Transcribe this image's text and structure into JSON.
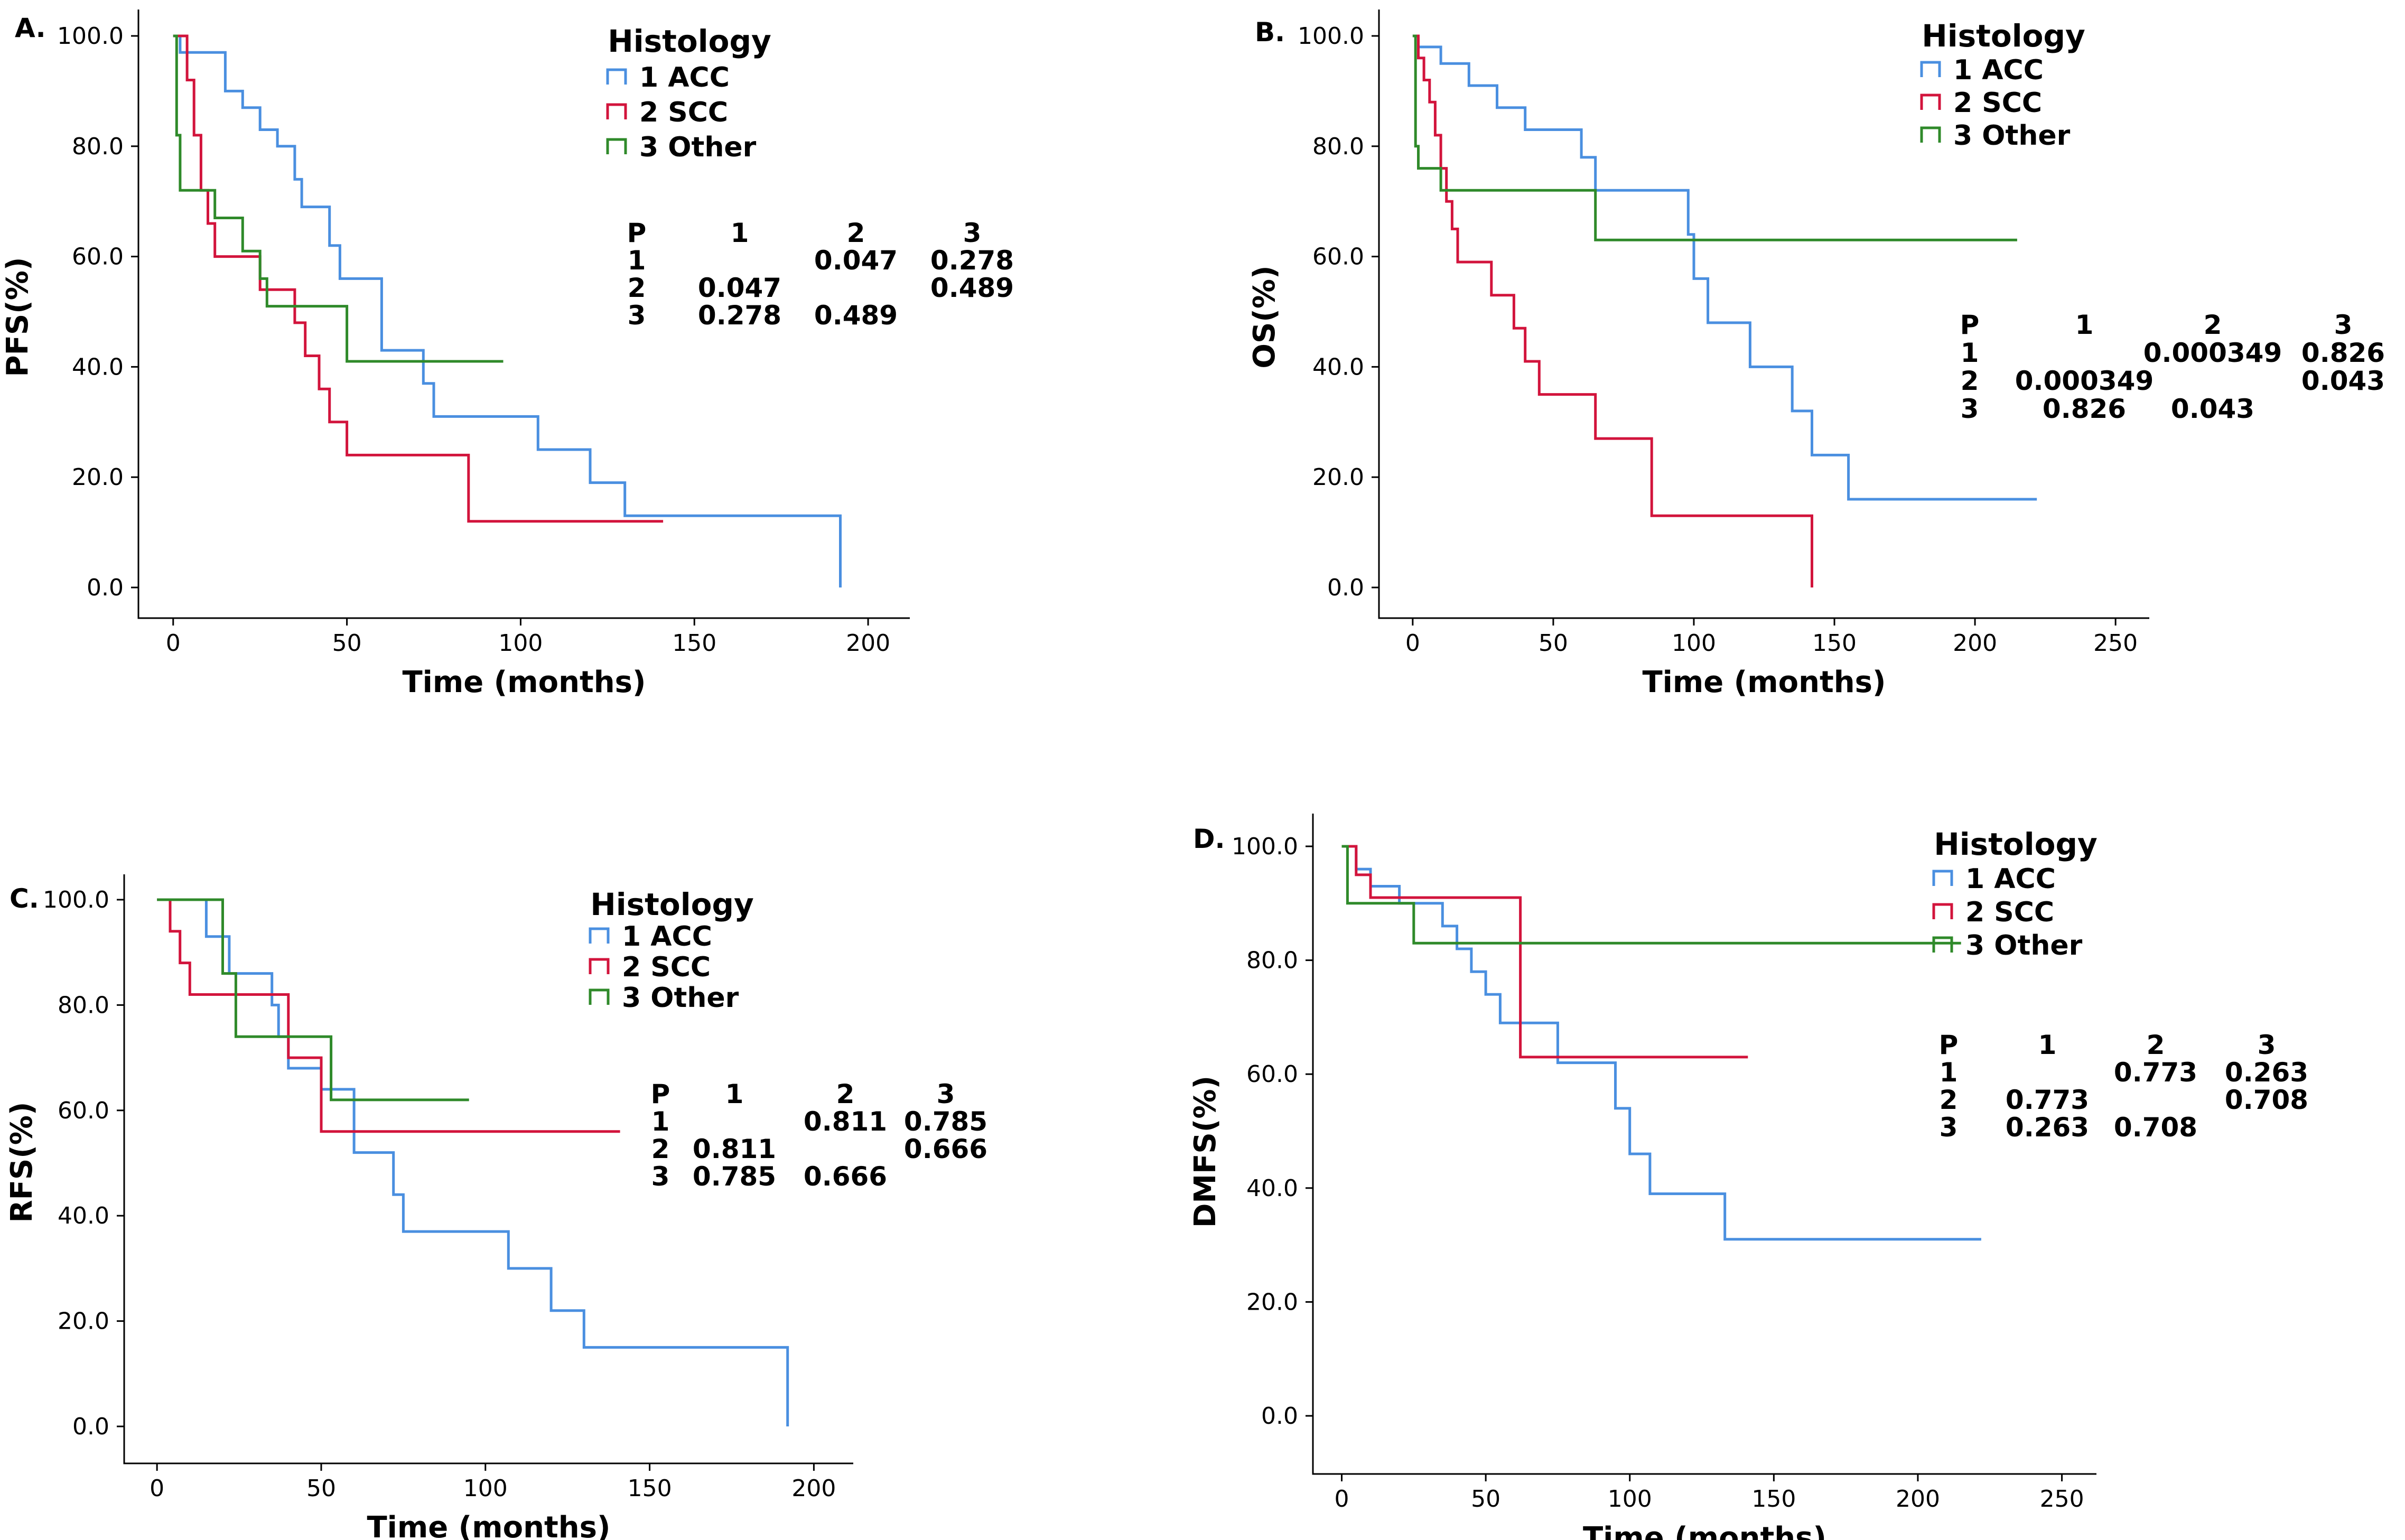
{
  "colors": {
    "acc": "#4a8fe0",
    "scc": "#d2143c",
    "other": "#2f8a2a"
  },
  "chart_data": [
    {
      "type": "line",
      "panel_label": "A.",
      "ylabel": "PFS(%)",
      "xlabel": "Time (months)",
      "xlim": [
        -10,
        212
      ],
      "ylim": [
        0,
        100
      ],
      "xticks": [
        0,
        50,
        100,
        150,
        200
      ],
      "yticks": [
        "0.0",
        "20.0",
        "40.0",
        "60.0",
        "80.0",
        "100.0"
      ],
      "legend": {
        "title": "Histology",
        "items": [
          "1  ACC",
          "2  SCC",
          "3  Other"
        ]
      },
      "p_table": {
        "header": [
          "P",
          "1",
          "2",
          "3"
        ],
        "rows": [
          [
            "1",
            "",
            "0.047",
            "0.278"
          ],
          [
            "2",
            "0.047",
            "",
            "0.489"
          ],
          [
            "3",
            "0.278",
            "0.489",
            ""
          ]
        ]
      },
      "series": [
        {
          "name": "1 ACC",
          "color_key": "acc",
          "points": [
            [
              0,
              100
            ],
            [
              2,
              97
            ],
            [
              15,
              90
            ],
            [
              20,
              87
            ],
            [
              25,
              83
            ],
            [
              30,
              80
            ],
            [
              35,
              74
            ],
            [
              37,
              69
            ],
            [
              45,
              62
            ],
            [
              48,
              56
            ],
            [
              60,
              43
            ],
            [
              72,
              37
            ],
            [
              75,
              31
            ],
            [
              105,
              25
            ],
            [
              120,
              19
            ],
            [
              130,
              13
            ],
            [
              192,
              13
            ],
            [
              192,
              0
            ]
          ]
        },
        {
          "name": "2 SCC",
          "color_key": "scc",
          "points": [
            [
              0,
              100
            ],
            [
              4,
              92
            ],
            [
              6,
              82
            ],
            [
              8,
              72
            ],
            [
              10,
              66
            ],
            [
              12,
              60
            ],
            [
              25,
              54
            ],
            [
              35,
              48
            ],
            [
              38,
              42
            ],
            [
              42,
              36
            ],
            [
              45,
              30
            ],
            [
              50,
              24
            ],
            [
              85,
              12
            ],
            [
              141,
              12
            ]
          ]
        },
        {
          "name": "3 Other",
          "color_key": "other",
          "points": [
            [
              0,
              100
            ],
            [
              1,
              82
            ],
            [
              2,
              72
            ],
            [
              12,
              67
            ],
            [
              20,
              61
            ],
            [
              25,
              56
            ],
            [
              27,
              51
            ],
            [
              50,
              41
            ],
            [
              95,
              41
            ]
          ]
        }
      ]
    },
    {
      "type": "line",
      "panel_label": "B.",
      "ylabel": "OS(%)",
      "xlabel": "Time (months)",
      "xlim": [
        -12,
        262
      ],
      "ylim": [
        0,
        100
      ],
      "xticks": [
        0,
        50,
        100,
        150,
        200,
        250
      ],
      "yticks": [
        "0.0",
        "20.0",
        "40.0",
        "60.0",
        "80.0",
        "100.0"
      ],
      "legend": {
        "title": "Histology",
        "items": [
          "1  ACC",
          "2  SCC",
          "3  Other"
        ]
      },
      "p_table": {
        "header": [
          "P",
          "1",
          "2",
          "3"
        ],
        "rows": [
          [
            "1",
            "",
            "0.000349",
            "0.826"
          ],
          [
            "2",
            "0.000349",
            "",
            "0.043"
          ],
          [
            "3",
            "0.826",
            "0.043",
            ""
          ]
        ]
      },
      "series": [
        {
          "name": "1 ACC",
          "color_key": "acc",
          "points": [
            [
              0,
              100
            ],
            [
              2,
              98
            ],
            [
              10,
              95
            ],
            [
              20,
              91
            ],
            [
              30,
              87
            ],
            [
              40,
              83
            ],
            [
              60,
              78
            ],
            [
              65,
              72
            ],
            [
              98,
              64
            ],
            [
              100,
              56
            ],
            [
              105,
              48
            ],
            [
              120,
              40
            ],
            [
              135,
              32
            ],
            [
              142,
              24
            ],
            [
              155,
              16
            ],
            [
              222,
              16
            ]
          ]
        },
        {
          "name": "2 SCC",
          "color_key": "scc",
          "points": [
            [
              0,
              100
            ],
            [
              2,
              96
            ],
            [
              4,
              92
            ],
            [
              6,
              88
            ],
            [
              8,
              82
            ],
            [
              10,
              76
            ],
            [
              12,
              70
            ],
            [
              14,
              65
            ],
            [
              16,
              59
            ],
            [
              28,
              53
            ],
            [
              36,
              47
            ],
            [
              40,
              41
            ],
            [
              45,
              35
            ],
            [
              65,
              27
            ],
            [
              85,
              13
            ],
            [
              142,
              13
            ],
            [
              142,
              0
            ]
          ]
        },
        {
          "name": "3 Other",
          "color_key": "other",
          "points": [
            [
              0,
              100
            ],
            [
              1,
              80
            ],
            [
              2,
              76
            ],
            [
              10,
              72
            ],
            [
              65,
              63
            ],
            [
              215,
              63
            ]
          ]
        }
      ]
    },
    {
      "type": "line",
      "panel_label": "C.",
      "ylabel": "RFS(%)",
      "xlabel": "Time (months)",
      "xlim": [
        -10,
        212
      ],
      "ylim": [
        0,
        100
      ],
      "xticks": [
        0,
        50,
        100,
        150,
        200
      ],
      "yticks": [
        "0.0",
        "20.0",
        "40.0",
        "60.0",
        "80.0",
        "100.0"
      ],
      "legend": {
        "title": "Histology",
        "items": [
          "1  ACC",
          "2  SCC",
          "3  Other"
        ]
      },
      "p_table": {
        "header": [
          "P",
          "1",
          "2",
          "3"
        ],
        "rows": [
          [
            "1",
            "",
            "0.811",
            "0.785"
          ],
          [
            "2",
            "0.811",
            "",
            "0.666"
          ],
          [
            "3",
            "0.785",
            "0.666",
            ""
          ]
        ]
      },
      "series": [
        {
          "name": "1 ACC",
          "color_key": "acc",
          "points": [
            [
              0,
              100
            ],
            [
              15,
              93
            ],
            [
              22,
              86
            ],
            [
              35,
              80
            ],
            [
              37,
              74
            ],
            [
              40,
              68
            ],
            [
              50,
              64
            ],
            [
              60,
              52
            ],
            [
              72,
              44
            ],
            [
              75,
              37
            ],
            [
              107,
              30
            ],
            [
              120,
              22
            ],
            [
              130,
              15
            ],
            [
              192,
              15
            ],
            [
              192,
              0
            ]
          ]
        },
        {
          "name": "2 SCC",
          "color_key": "scc",
          "points": [
            [
              0,
              100
            ],
            [
              4,
              94
            ],
            [
              7,
              88
            ],
            [
              10,
              82
            ],
            [
              40,
              70
            ],
            [
              50,
              56
            ],
            [
              141,
              56
            ]
          ]
        },
        {
          "name": "3 Other",
          "color_key": "other",
          "points": [
            [
              0,
              100
            ],
            [
              20,
              86
            ],
            [
              24,
              74
            ],
            [
              53,
              62
            ],
            [
              95,
              62
            ]
          ]
        }
      ]
    },
    {
      "type": "line",
      "panel_label": "D.",
      "ylabel": "DMFS(%)",
      "xlabel": "Time (months)",
      "xlim": [
        -10,
        262
      ],
      "ylim": [
        0,
        100
      ],
      "xticks": [
        0,
        50,
        100,
        150,
        200,
        250
      ],
      "yticks": [
        "0.0",
        "20.0",
        "40.0",
        "60.0",
        "80.0",
        "100.0"
      ],
      "legend": {
        "title": "Histology",
        "items": [
          "1  ACC",
          "2  SCC",
          "3  Other"
        ]
      },
      "p_table": {
        "header": [
          "P",
          "1",
          "2",
          "3"
        ],
        "rows": [
          [
            "1",
            "",
            "0.773",
            "0.263"
          ],
          [
            "2",
            "0.773",
            "",
            "0.708"
          ],
          [
            "3",
            "0.263",
            "0.708",
            ""
          ]
        ]
      },
      "series": [
        {
          "name": "1 ACC",
          "color_key": "acc",
          "points": [
            [
              0,
              100
            ],
            [
              5,
              96
            ],
            [
              10,
              93
            ],
            [
              20,
              90
            ],
            [
              35,
              86
            ],
            [
              40,
              82
            ],
            [
              45,
              78
            ],
            [
              50,
              74
            ],
            [
              55,
              69
            ],
            [
              75,
              62
            ],
            [
              95,
              54
            ],
            [
              100,
              46
            ],
            [
              107,
              39
            ],
            [
              133,
              31
            ],
            [
              222,
              31
            ]
          ]
        },
        {
          "name": "2 SCC",
          "color_key": "scc",
          "points": [
            [
              0,
              100
            ],
            [
              5,
              95
            ],
            [
              10,
              91
            ],
            [
              25,
              91
            ],
            [
              62,
              63
            ],
            [
              141,
              63
            ]
          ]
        },
        {
          "name": "3 Other",
          "color_key": "other",
          "points": [
            [
              0,
              100
            ],
            [
              2,
              90
            ],
            [
              25,
              83
            ],
            [
              215,
              83
            ]
          ]
        }
      ]
    }
  ]
}
